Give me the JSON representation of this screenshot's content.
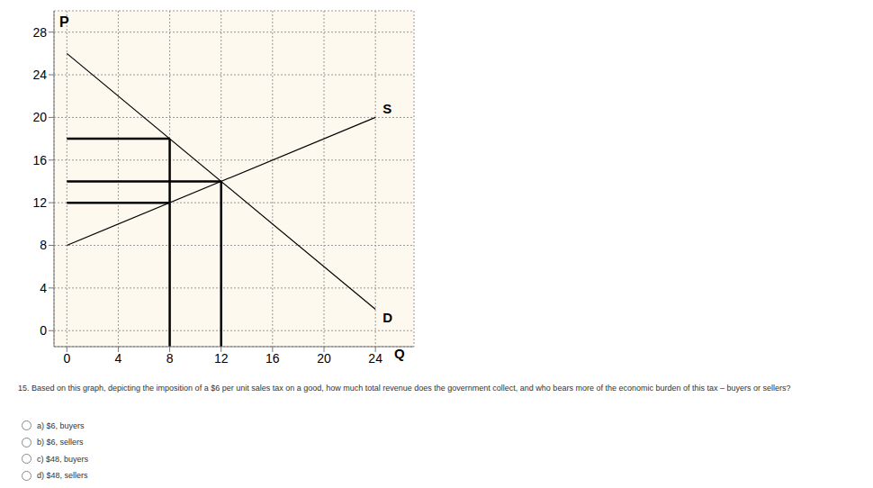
{
  "chart_data": {
    "type": "line",
    "x_label": "Q",
    "y_label": "P",
    "xlim": [
      -1,
      27
    ],
    "ylim": [
      -1.5,
      30
    ],
    "xticks": [
      0,
      4,
      8,
      12,
      16,
      20,
      24
    ],
    "yticks": [
      0,
      4,
      8,
      12,
      16,
      20,
      24,
      28
    ],
    "grid": true,
    "series": [
      {
        "name": "S",
        "color": "#000000",
        "x": [
          0,
          24
        ],
        "values": [
          8,
          20
        ]
      },
      {
        "name": "D",
        "color": "#000000",
        "x": [
          0,
          24
        ],
        "values": [
          26,
          2
        ]
      }
    ],
    "guide_lines": [
      {
        "x": [
          0,
          8
        ],
        "values": [
          18,
          18
        ]
      },
      {
        "x": [
          0,
          12
        ],
        "values": [
          14,
          14
        ]
      },
      {
        "x": [
          0,
          8
        ],
        "values": [
          12,
          12
        ]
      },
      {
        "x": [
          8,
          8
        ],
        "values": [
          -1.5,
          18
        ]
      },
      {
        "x": [
          12,
          12
        ],
        "values": [
          -1.5,
          14
        ]
      }
    ],
    "guide_color": "#000000"
  },
  "question": {
    "text": "15. Based on this graph, depicting the imposition of a $6 per unit sales tax on a good, how much total revenue does the government collect, and who bears more of the economic burden of this tax – buyers or sellers?",
    "options": [
      "a) $6, buyers",
      "b) $6, sellers",
      "c) $48, buyers",
      "d) $48, sellers"
    ]
  }
}
